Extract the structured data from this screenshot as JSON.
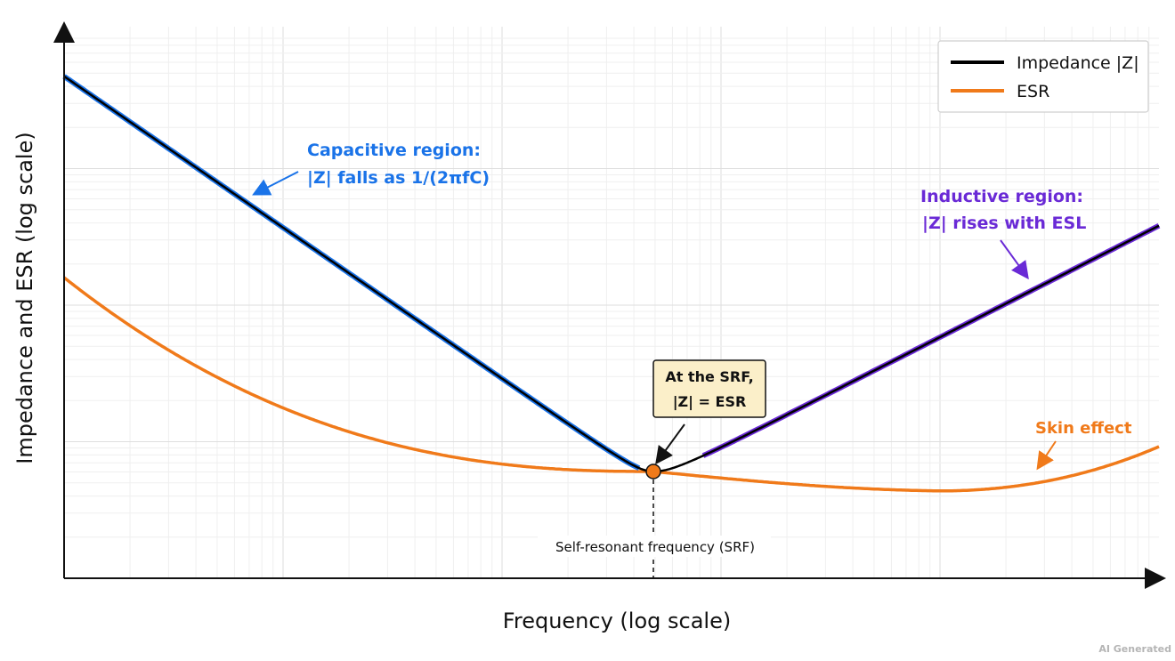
{
  "chart_data": {
    "type": "line",
    "xlabel": "Frequency (log scale)",
    "ylabel": "Impedance and ESR (log scale)",
    "x_scale": "log",
    "y_scale": "log",
    "grid": true,
    "legend_position": "top-right",
    "series": [
      {
        "name": "Impedance |Z|",
        "color": "#000000"
      },
      {
        "name": "ESR",
        "color": "#f07a1a"
      }
    ],
    "annotations": {
      "capacitive_line1": "Capacitive region:",
      "capacitive_line2": "|Z| falls as 1/(2πfC)",
      "inductive_line1": "Inductive region:",
      "inductive_line2": "|Z| rises with ESL",
      "srf_callout_line1": "At the SRF,",
      "srf_callout_line2": "|Z| = ESR",
      "srf_axis_label": "Self-resonant frequency (SRF)",
      "skin_effect": "Skin effect"
    },
    "colors": {
      "capacitive": "#1a73e8",
      "inductive": "#6a2ad6",
      "esr": "#f07a1a",
      "callout_fill": "#fbefc9"
    }
  },
  "watermark": "AI Generated"
}
